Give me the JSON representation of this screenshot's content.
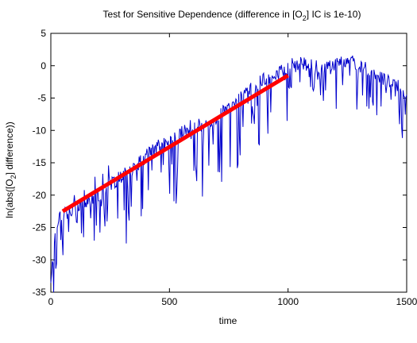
{
  "chart_data": {
    "type": "line",
    "title": {
      "prefix": "Test for Sensitive Dependence (difference in [O",
      "subscript": "2",
      "suffix": "] IC is 1e-10)"
    },
    "xlabel": "time",
    "ylabel": {
      "prefix": "ln(abs([O",
      "subscript": "2",
      "suffix": "] difference))"
    },
    "xlim": [
      0,
      1500
    ],
    "ylim": [
      -35,
      5
    ],
    "xticks": [
      0,
      500,
      1000,
      1500
    ],
    "yticks": [
      5,
      0,
      -5,
      -10,
      -15,
      -20,
      -25,
      -30,
      -35
    ],
    "grid": false,
    "series": [
      {
        "color": "#0000cc",
        "style": "noisy-line",
        "x": [
          0,
          20,
          40,
          60,
          80,
          100,
          150,
          200,
          250,
          300,
          350,
          400,
          450,
          500,
          550,
          600,
          650,
          700,
          750,
          800,
          850,
          900,
          950,
          1000,
          1050,
          1100,
          1150,
          1200,
          1250,
          1300,
          1350,
          1400,
          1450,
          1500
        ],
        "y": [
          -33,
          -25,
          -23,
          -22.5,
          -23,
          -22,
          -21,
          -20,
          -18.5,
          -17,
          -16,
          -14,
          -12.5,
          -12,
          -10.5,
          -9,
          -9.5,
          -8,
          -6.5,
          -5,
          -3.5,
          -2,
          -1.5,
          0,
          0.5,
          0,
          -0.5,
          0.5,
          1,
          0,
          -1,
          -2,
          -3,
          -4
        ]
      },
      {
        "color": "#ff0000",
        "style": "fit-line",
        "x": [
          50,
          1000
        ],
        "y": [
          -22.5,
          -1.5
        ]
      }
    ]
  }
}
